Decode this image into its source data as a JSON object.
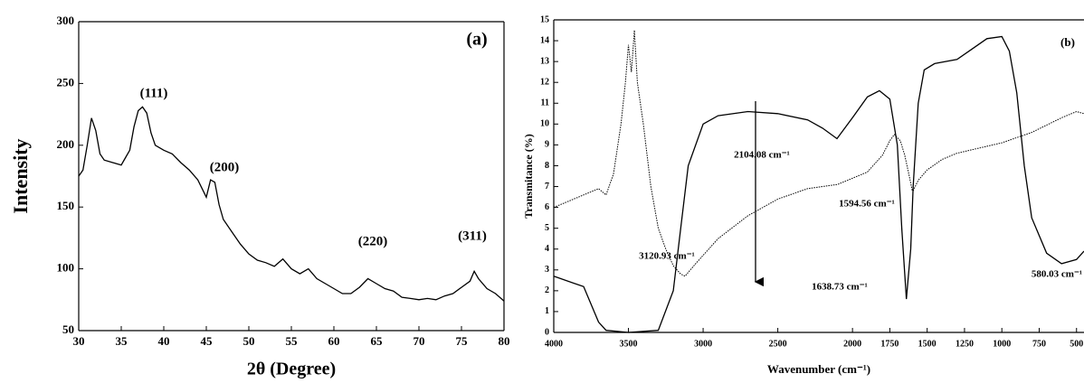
{
  "chart_data": [
    {
      "type": "line",
      "panel_label": "(a)",
      "x_label": "2θ (Degree)",
      "y_label": "Intensity",
      "xlim": [
        30,
        80
      ],
      "xticks": [
        30,
        35,
        40,
        45,
        50,
        55,
        60,
        65,
        70,
        75,
        80
      ],
      "ylim": [
        50,
        300
      ],
      "yticks": [
        50,
        100,
        150,
        200,
        250,
        300
      ],
      "grid": false,
      "annotations": [
        "(111)",
        "(200)",
        "(220)",
        "(311)"
      ],
      "series": [
        {
          "color": "#000000",
          "line_style": "solid",
          "x": [
            30,
            30.5,
            31,
            31.5,
            32,
            32.5,
            33,
            34,
            35,
            35.5,
            36,
            36.5,
            37,
            37.5,
            38,
            38.5,
            39,
            40,
            41,
            42,
            43,
            44,
            45,
            45.5,
            46,
            46.5,
            47,
            48,
            49,
            50,
            51,
            52,
            53,
            54,
            55,
            56,
            57,
            58,
            59,
            60,
            61,
            62,
            63,
            64,
            65,
            66,
            67,
            68,
            69,
            70,
            71,
            72,
            73,
            74,
            75,
            76,
            76.5,
            77,
            78,
            79,
            80
          ],
          "values": [
            175,
            180,
            200,
            222,
            212,
            193,
            188,
            186,
            184,
            190,
            196,
            215,
            228,
            231,
            226,
            210,
            200,
            196,
            193,
            186,
            180,
            172,
            158,
            172,
            170,
            152,
            140,
            130,
            120,
            112,
            107,
            105,
            102,
            108,
            100,
            96,
            100,
            92,
            88,
            84,
            80,
            80,
            85,
            92,
            88,
            84,
            82,
            77,
            76,
            75,
            76,
            75,
            78,
            80,
            85,
            90,
            98,
            92,
            84,
            80,
            74
          ]
        }
      ]
    },
    {
      "type": "line",
      "panel_label": "(b)",
      "x_label": "Wavenumber (cm⁻¹)",
      "y_label": "Transmitance (%)",
      "xlim": [
        4000,
        450
      ],
      "xticks": [
        4000,
        3500,
        3000,
        2500,
        2000,
        1750,
        1500,
        1250,
        1000,
        750,
        500
      ],
      "ylim": [
        0,
        15
      ],
      "yticks": [
        0,
        1,
        2,
        3,
        4,
        5,
        6,
        7,
        8,
        9,
        10,
        11,
        12,
        13,
        14,
        15
      ],
      "grid": false,
      "annotations": [
        "3120.93 cm⁻¹",
        "2104.08 cm⁻¹",
        "1594.56 cm⁻¹",
        "1638.73 cm⁻¹",
        "580.03 cm⁻¹"
      ],
      "series": [
        {
          "color": "#000000",
          "line_style": "solid",
          "x": [
            4000,
            3800,
            3700,
            3650,
            3500,
            3300,
            3200,
            3150,
            3100,
            3000,
            2900,
            2700,
            2500,
            2300,
            2200,
            2104,
            2000,
            1900,
            1820,
            1750,
            1700,
            1670,
            1639,
            1610,
            1594,
            1560,
            1520,
            1450,
            1300,
            1200,
            1100,
            1000,
            950,
            900,
            850,
            800,
            700,
            600,
            500,
            450
          ],
          "values": [
            2.7,
            2.2,
            0.5,
            0.1,
            0,
            0.1,
            2,
            5,
            8,
            10,
            10.4,
            10.6,
            10.5,
            10.2,
            9.8,
            9.3,
            10.3,
            11.3,
            11.6,
            11.2,
            9,
            5,
            1.6,
            4,
            7,
            11,
            12.6,
            12.9,
            13.1,
            13.6,
            14.1,
            14.2,
            13.5,
            11.5,
            8,
            5.5,
            3.8,
            3.3,
            3.5,
            3.9
          ]
        },
        {
          "color": "#000000",
          "line_style": "dotted",
          "x": [
            4000,
            3800,
            3700,
            3650,
            3600,
            3550,
            3520,
            3500,
            3480,
            3460,
            3440,
            3420,
            3400,
            3350,
            3300,
            3250,
            3200,
            3150,
            3121,
            3050,
            2900,
            2700,
            2500,
            2300,
            2100,
            1900,
            1800,
            1750,
            1720,
            1680,
            1650,
            1620,
            1600,
            1594,
            1560,
            1500,
            1400,
            1300,
            1000,
            800,
            600,
            500,
            450
          ],
          "values": [
            6,
            6.6,
            6.9,
            6.6,
            7.6,
            10,
            12,
            13.8,
            12.5,
            14.5,
            12,
            11,
            10,
            7,
            5,
            4,
            3.2,
            2.8,
            2.7,
            3.3,
            4.5,
            5.6,
            6.4,
            6.9,
            7.1,
            7.7,
            8.5,
            9.2,
            9.5,
            9.2,
            8.5,
            7.5,
            6.8,
            6.8,
            7.3,
            7.8,
            8.3,
            8.6,
            9.1,
            9.6,
            10.3,
            10.6,
            10.5
          ]
        }
      ]
    }
  ]
}
